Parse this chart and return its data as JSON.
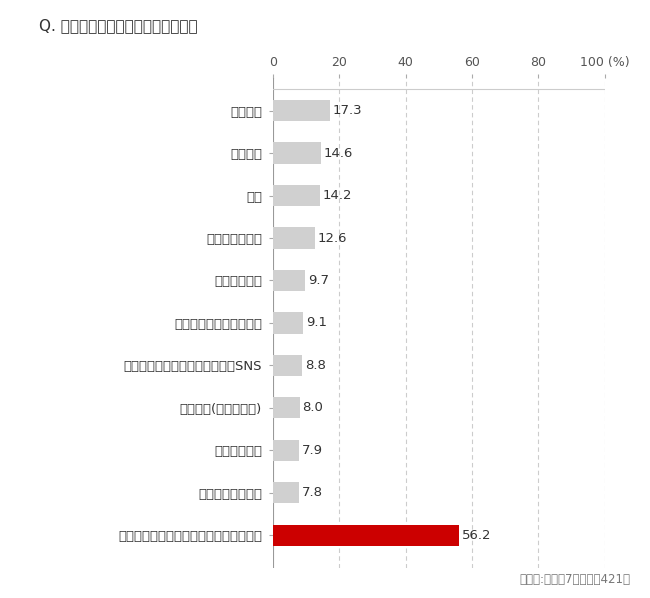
{
  "title": "Q. あなたの趣味を教えてください。",
  "categories": [
    "明確に「趣味」と答えられるものはない",
    "グルメ・食べ歩き",
    "スポーツ観戦",
    "スポーツ(自分でやる)",
    "パソコン・ネットサーフィン・SNS",
    "ガーデニング・家庭菜園",
    "ウォーキング",
    "映画・演劇鑑賞",
    "読書",
    "音楽鑑賞",
    "国内旅行"
  ],
  "values": [
    56.2,
    7.8,
    7.9,
    8.0,
    8.8,
    9.1,
    9.7,
    12.6,
    14.2,
    14.6,
    17.3
  ],
  "bar_colors": [
    "#cc0000",
    "#d0d0d0",
    "#d0d0d0",
    "#d0d0d0",
    "#d0d0d0",
    "#d0d0d0",
    "#d0d0d0",
    "#d0d0d0",
    "#d0d0d0",
    "#d0d0d0",
    "#d0d0d0"
  ],
  "footnote": "対象者:幸福度7点以上の421名",
  "xlim": [
    0,
    100
  ],
  "xticks": [
    0,
    20,
    40,
    60,
    80,
    100
  ],
  "bg_color": "#ffffff",
  "grid_color": "#cccccc",
  "bar_height": 0.5,
  "value_fontsize": 9.5,
  "label_fontsize": 9.5,
  "title_fontsize": 11
}
